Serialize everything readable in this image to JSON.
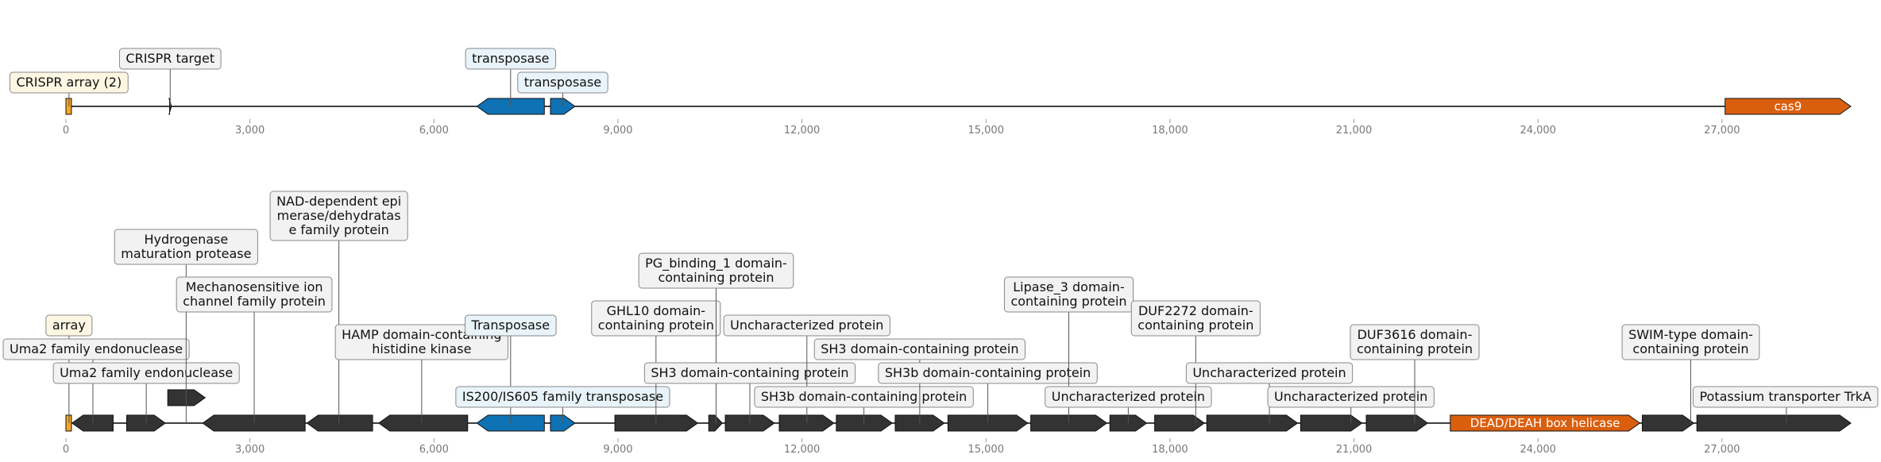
{
  "axis": {
    "min": 0,
    "max": 29100,
    "ticks": [
      0,
      3000,
      6000,
      9000,
      12000,
      15000,
      18000,
      21000,
      24000,
      27000
    ]
  },
  "colors": {
    "black_gene": "#333333",
    "transposase": "#0e72b4",
    "cas9": "#d95f0e",
    "crispr": "#f5a623",
    "box_default": "#f2f2f2",
    "box_blue": "#e8f3fa",
    "box_yellow": "#fdf6e3",
    "axis_text": "#777777"
  },
  "panels": [
    {
      "genes": [
        {
          "start": 0,
          "end": 90,
          "dir": "box",
          "color": "crispr"
        },
        {
          "start": 1690,
          "end": 1720,
          "dir": "+",
          "color": "black_gene"
        },
        {
          "start": 6700,
          "end": 7800,
          "dir": "-",
          "color": "transposase"
        },
        {
          "start": 7900,
          "end": 8300,
          "dir": "+",
          "color": "transposase"
        },
        {
          "start": 27050,
          "end": 29100,
          "dir": "+",
          "color": "cas9",
          "inner": "cas9"
        }
      ],
      "labels": [
        {
          "text": "CRISPR array (2)",
          "lines": [
            "CRISPR array (2)"
          ],
          "x": 50,
          "level": 1,
          "bg": "box_yellow"
        },
        {
          "text": "CRISPR target",
          "lines": [
            "CRISPR target"
          ],
          "x": 1700,
          "level": 2,
          "bg": "box_default"
        },
        {
          "text": "transposase",
          "lines": [
            "transposase"
          ],
          "x": 7250,
          "level": 2,
          "bg": "box_blue"
        },
        {
          "text": "transposase",
          "lines": [
            "transposase"
          ],
          "x": 8100,
          "level": 1,
          "bg": "box_blue"
        }
      ]
    },
    {
      "genes": [
        {
          "start": 0,
          "end": 90,
          "dir": "box",
          "color": "crispr"
        },
        {
          "start": 100,
          "end": 770,
          "dir": "-",
          "color": "black_gene"
        },
        {
          "start": 990,
          "end": 1620,
          "dir": "+",
          "color": "black_gene"
        },
        {
          "start": 1660,
          "end": 2270,
          "dir": "+",
          "color": "black_gene",
          "row": "upper"
        },
        {
          "start": 2230,
          "end": 3900,
          "dir": "-",
          "color": "black_gene"
        },
        {
          "start": 3930,
          "end": 5000,
          "dir": "-",
          "color": "black_gene"
        },
        {
          "start": 5100,
          "end": 6550,
          "dir": "-",
          "color": "black_gene"
        },
        {
          "start": 6700,
          "end": 7800,
          "dir": "-",
          "color": "transposase"
        },
        {
          "start": 7900,
          "end": 8300,
          "dir": "+",
          "color": "transposase"
        },
        {
          "start": 8950,
          "end": 10300,
          "dir": "+",
          "color": "black_gene"
        },
        {
          "start": 10480,
          "end": 10700,
          "dir": "+",
          "color": "black_gene"
        },
        {
          "start": 10750,
          "end": 11550,
          "dir": "+",
          "color": "black_gene"
        },
        {
          "start": 11630,
          "end": 12520,
          "dir": "+",
          "color": "black_gene"
        },
        {
          "start": 12560,
          "end": 13470,
          "dir": "+",
          "color": "black_gene"
        },
        {
          "start": 13520,
          "end": 14320,
          "dir": "+",
          "color": "black_gene"
        },
        {
          "start": 14380,
          "end": 15680,
          "dir": "+",
          "color": "black_gene"
        },
        {
          "start": 15730,
          "end": 16970,
          "dir": "+",
          "color": "black_gene"
        },
        {
          "start": 17020,
          "end": 17620,
          "dir": "+",
          "color": "black_gene"
        },
        {
          "start": 17750,
          "end": 18560,
          "dir": "+",
          "color": "black_gene"
        },
        {
          "start": 18600,
          "end": 20080,
          "dir": "+",
          "color": "black_gene"
        },
        {
          "start": 20130,
          "end": 21130,
          "dir": "+",
          "color": "black_gene"
        },
        {
          "start": 21200,
          "end": 22200,
          "dir": "+",
          "color": "black_gene"
        },
        {
          "start": 22570,
          "end": 25660,
          "dir": "+",
          "color": "cas9",
          "inner": "DEAD/DEAH box helicase"
        },
        {
          "start": 25700,
          "end": 26540,
          "dir": "+",
          "color": "black_gene"
        },
        {
          "start": 26590,
          "end": 29100,
          "dir": "+",
          "color": "black_gene"
        }
      ],
      "labels": [
        {
          "text": "array",
          "lines": [
            "array"
          ],
          "x": 50,
          "level": 4,
          "bg": "box_yellow"
        },
        {
          "text": "Uma2 family endonuclease",
          "lines": [
            "Uma2 family endonuclease"
          ],
          "x": 440,
          "level": 3,
          "bg": "box_default"
        },
        {
          "text": "Uma2 family endonuclease",
          "lines": [
            "Uma2 family endonuclease"
          ],
          "x": 1310,
          "level": 2,
          "bg": "box_default"
        },
        {
          "text": "Hydrogenase maturation protease",
          "lines": [
            "Hydrogenase",
            "maturation protease"
          ],
          "x": 1960,
          "level": 7,
          "bg": "box_default"
        },
        {
          "text": "Mechanosensitive ion channel family protein",
          "lines": [
            "Mechanosensitive ion",
            "channel family protein"
          ],
          "x": 3070,
          "level": 5,
          "bg": "box_default"
        },
        {
          "text": "NAD-dependent epi merase/dehydratas e family protein",
          "lines": [
            "NAD-dependent epi",
            "merase/dehydratas",
            "e family protein"
          ],
          "x": 4450,
          "level": 8,
          "bg": "box_default"
        },
        {
          "text": "HAMP domain-containing histidine kinase",
          "lines": [
            "HAMP domain-containing",
            "histidine kinase"
          ],
          "x": 5800,
          "level": 3,
          "bg": "box_default"
        },
        {
          "text": "Transposase",
          "lines": [
            "Transposase"
          ],
          "x": 7250,
          "level": 4,
          "bg": "box_blue"
        },
        {
          "text": "IS200/IS605 family transposase",
          "lines": [
            "IS200/IS605 family transposase"
          ],
          "x": 8100,
          "level": 1,
          "bg": "box_blue"
        },
        {
          "text": "GHL10 domain-containing protein",
          "lines": [
            "GHL10 domain-",
            "containing protein"
          ],
          "x": 9620,
          "level": 4,
          "bg": "box_default"
        },
        {
          "text": "PG_binding_1 domain-containing protein",
          "lines": [
            "PG_binding_1 domain-",
            "containing protein"
          ],
          "x": 10600,
          "level": 6,
          "bg": "box_default"
        },
        {
          "text": "SH3 domain-containing protein",
          "lines": [
            "SH3 domain-containing protein"
          ],
          "x": 11150,
          "level": 2,
          "bg": "box_default"
        },
        {
          "text": "Uncharacterized protein",
          "lines": [
            "Uncharacterized protein"
          ],
          "x": 12080,
          "level": 4,
          "bg": "box_default"
        },
        {
          "text": "SH3b domain-containing protein",
          "lines": [
            "SH3b domain-containing protein"
          ],
          "x": 13010,
          "level": 1,
          "bg": "box_default"
        },
        {
          "text": "SH3 domain-containing protein",
          "lines": [
            "SH3 domain-containing protein"
          ],
          "x": 13920,
          "level": 3,
          "bg": "box_default"
        },
        {
          "text": "SH3b domain-containing protein",
          "lines": [
            "SH3b domain-containing protein"
          ],
          "x": 15030,
          "level": 2,
          "bg": "box_default"
        },
        {
          "text": "Lipase_3 domain-containing protein",
          "lines": [
            "Lipase_3 domain-",
            "containing protein"
          ],
          "x": 16350,
          "level": 5,
          "bg": "box_default"
        },
        {
          "text": "Uncharacterized protein",
          "lines": [
            "Uncharacterized protein"
          ],
          "x": 17320,
          "level": 1,
          "bg": "box_default"
        },
        {
          "text": "DUF2272 domain-containing protein",
          "lines": [
            "DUF2272 domain-",
            "containing protein"
          ],
          "x": 18420,
          "level": 4,
          "bg": "box_default"
        },
        {
          "text": "Uncharacterized protein",
          "lines": [
            "Uncharacterized protein"
          ],
          "x": 19620,
          "level": 2,
          "bg": "box_default"
        },
        {
          "text": "Uncharacterized protein",
          "lines": [
            "Uncharacterized protein"
          ],
          "x": 20950,
          "level": 1,
          "bg": "box_default"
        },
        {
          "text": "DUF3616 domain-containing protein",
          "lines": [
            "DUF3616 domain-",
            "containing protein"
          ],
          "x": 21990,
          "level": 3,
          "bg": "box_default"
        },
        {
          "text": "SWIM-type domain-containing protein",
          "lines": [
            "SWIM-type domain-",
            "containing protein"
          ],
          "x": 26490,
          "level": 3,
          "bg": "box_default"
        },
        {
          "text": "Potassium transporter TrkA",
          "lines": [
            "Potassium transporter TrkA"
          ],
          "x": 28050,
          "level": 1,
          "bg": "box_default"
        }
      ]
    }
  ]
}
